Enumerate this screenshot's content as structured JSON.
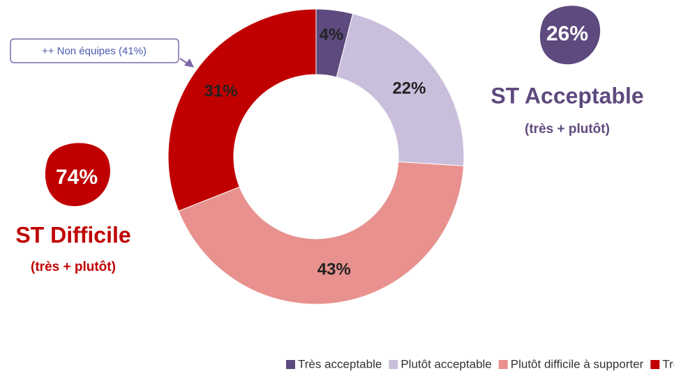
{
  "chart_data": {
    "type": "donut",
    "categories": [
      "Très acceptable",
      "Plutôt acceptable",
      "Plutôt difficile à supporter",
      "Très difficile à supporter"
    ],
    "values": [
      4,
      22,
      43,
      31
    ],
    "value_labels": [
      "4%",
      "22%",
      "43%",
      "31%"
    ],
    "colors": [
      "#5e4a7e",
      "#c9bfdc",
      "#e8918e",
      "#c00000"
    ],
    "legend": "bottom",
    "annotations": [
      "26%",
      "ST Acceptable",
      "(très + plutôt)",
      "74%",
      "ST Difficile",
      "(très + plutôt)",
      "++ Non équipes (41%)"
    ]
  }
}
